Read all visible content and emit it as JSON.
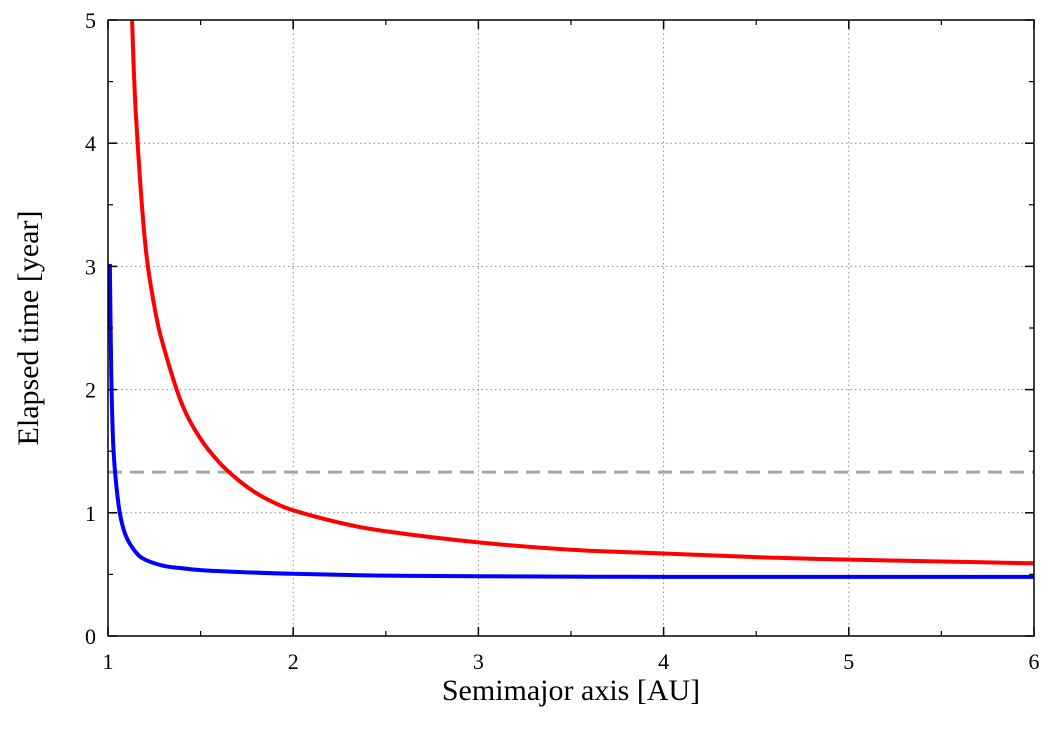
{
  "chart_data": {
    "type": "line",
    "title": "",
    "xlabel": "Semimajor axis [AU]",
    "ylabel": "Elapsed time [year]",
    "xlim": [
      1,
      6
    ],
    "ylim": [
      0,
      5
    ],
    "x_ticks": [
      1,
      2,
      3,
      4,
      5,
      6
    ],
    "y_ticks": [
      0,
      1,
      2,
      3,
      4,
      5
    ],
    "x_tick_labels": [
      "1",
      "2",
      "3",
      "4",
      "5",
      "6"
    ],
    "y_tick_labels": [
      "0",
      "1",
      "2",
      "3",
      "4",
      "5"
    ],
    "grid": true,
    "legend": "none",
    "series": [
      {
        "color": "#ff0000",
        "style": "solid",
        "x": [
          1.13,
          1.15,
          1.2,
          1.25,
          1.3,
          1.4,
          1.5,
          1.6,
          1.7,
          1.8,
          1.9,
          2.0,
          2.25,
          2.5,
          3.0,
          3.5,
          4.0,
          4.5,
          5.0,
          5.5,
          6.0
        ],
        "y": [
          5.0,
          4.25,
          3.2,
          2.68,
          2.35,
          1.88,
          1.6,
          1.41,
          1.27,
          1.16,
          1.08,
          1.02,
          0.92,
          0.85,
          0.76,
          0.7,
          0.67,
          0.64,
          0.62,
          0.605,
          0.59
        ]
      },
      {
        "color": "#0000ff",
        "style": "solid",
        "x": [
          1.01,
          1.015,
          1.02,
          1.03,
          1.05,
          1.07,
          1.1,
          1.15,
          1.2,
          1.3,
          1.4,
          1.5,
          1.7,
          2.0,
          2.5,
          3.0,
          4.0,
          5.0,
          6.0
        ],
        "y": [
          3.02,
          2.4,
          1.95,
          1.5,
          1.15,
          0.95,
          0.8,
          0.68,
          0.62,
          0.57,
          0.55,
          0.535,
          0.52,
          0.505,
          0.49,
          0.485,
          0.48,
          0.48,
          0.48
        ]
      },
      {
        "color": "#a6a6a6",
        "style": "dashed",
        "x": [
          1.0,
          6.0
        ],
        "y": [
          1.33,
          1.33
        ]
      }
    ]
  }
}
